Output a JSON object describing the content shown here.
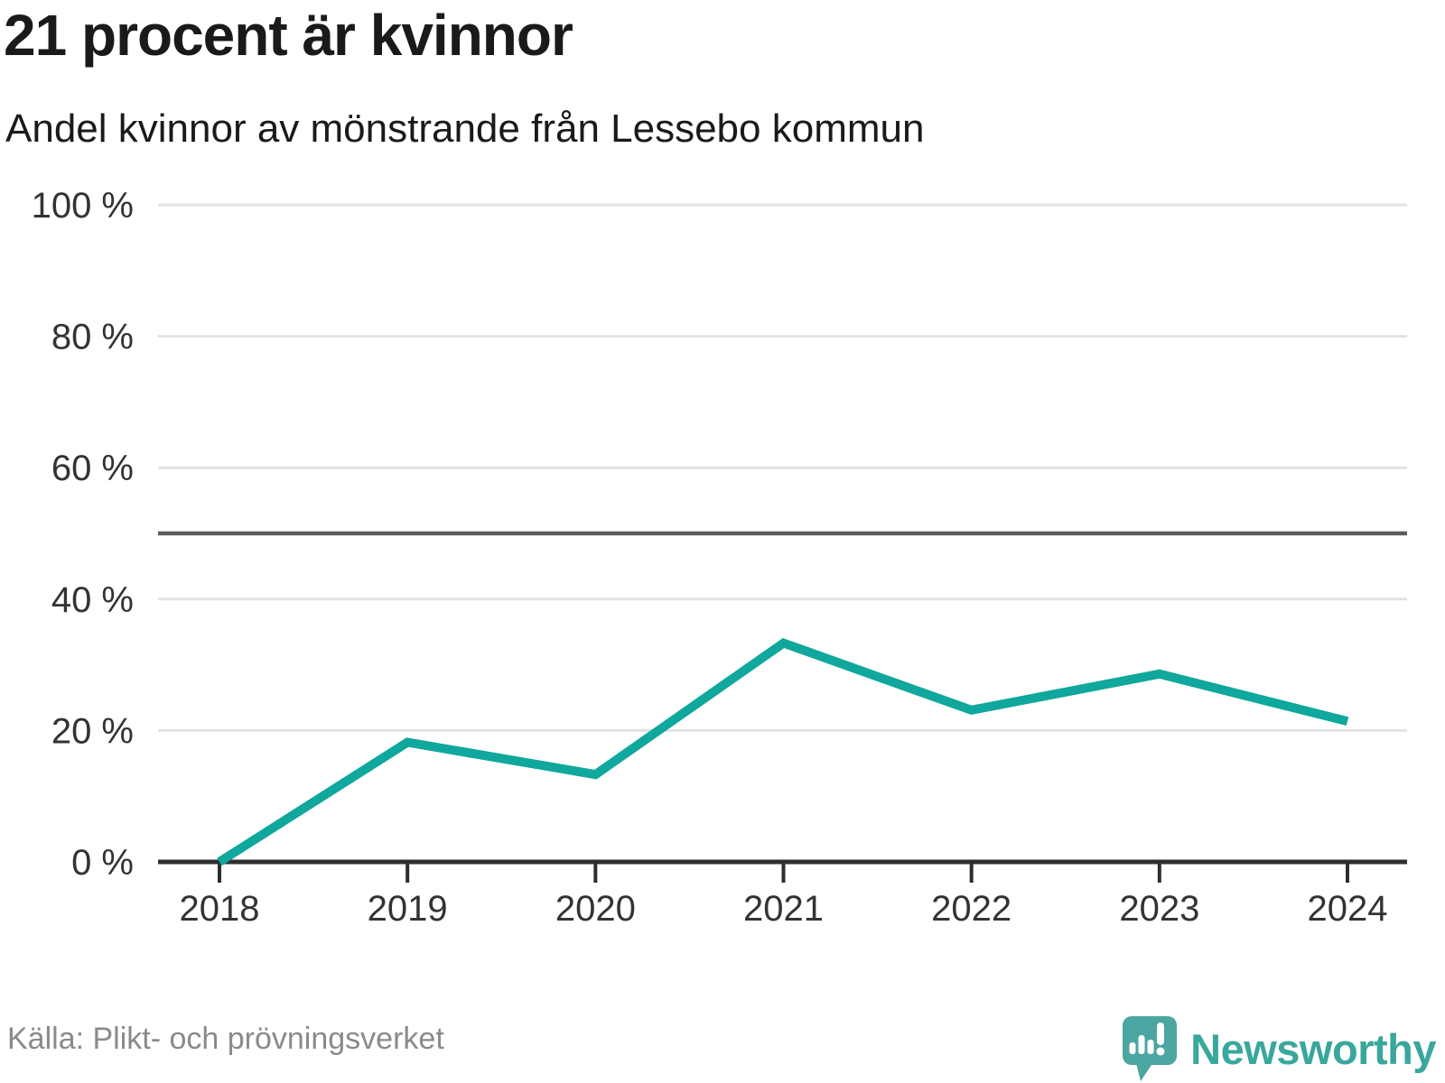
{
  "header": {
    "title": "21 procent är kvinnor",
    "subtitle": "Andel kvinnor av mönstrande från Lessebo kommun"
  },
  "chart_data": {
    "type": "line",
    "title": "21 procent är kvinnor",
    "subtitle": "Andel kvinnor av mönstrande från Lessebo kommun",
    "x": [
      "2018",
      "2019",
      "2020",
      "2021",
      "2022",
      "2023",
      "2024"
    ],
    "series": [
      {
        "name": "andel-kvinnor",
        "values": [
          0,
          18.2,
          13.3,
          33.3,
          23.1,
          28.6,
          21.4
        ]
      }
    ],
    "xlabel": "",
    "ylabel": "",
    "ylim": [
      0,
      100
    ],
    "yticks": [
      0,
      20,
      40,
      60,
      80,
      100
    ],
    "ytick_suffix": " %",
    "reference_line": 50,
    "grid": true,
    "legend_position": "none",
    "line_color": "#10a79c"
  },
  "footer": {
    "source": "Källa: Plikt- och prövningsverket",
    "brand": "Newsworthy"
  },
  "colors": {
    "title": "#1a1a1a",
    "subtitle": "#1a1a1a",
    "axis": "#2e2e2e",
    "tick_label": "#333333",
    "gridline": "#e2e2e2",
    "reference_line": "#5c5c5c",
    "line": "#10a79c",
    "source_text": "#8a8a8a",
    "brand_teal": "#3aa79c",
    "logo_bubble": "#4ba5a0"
  }
}
